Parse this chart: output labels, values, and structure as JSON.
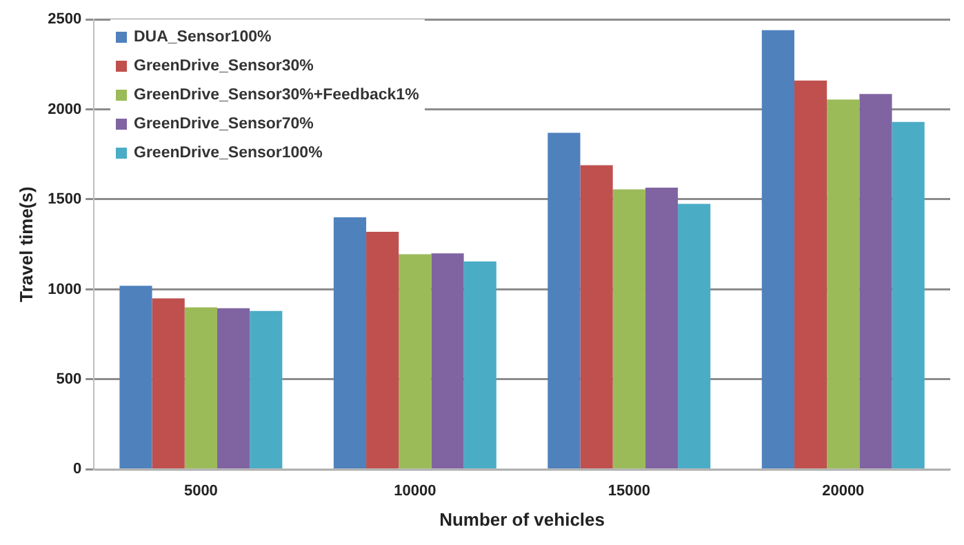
{
  "chart_data": {
    "type": "bar",
    "xlabel": "Number of vehicles",
    "ylabel": "Travel time(s)",
    "categories": [
      "5000",
      "10000",
      "15000",
      "20000"
    ],
    "series": [
      {
        "name": "DUA_Sensor100%",
        "color": "#4f81bd",
        "values": [
          1020,
          1400,
          1870,
          2440
        ]
      },
      {
        "name": "GreenDrive_Sensor30%",
        "color": "#c0504d",
        "values": [
          950,
          1320,
          1690,
          2160
        ]
      },
      {
        "name": "GreenDrive_Sensor30%+Feedback1%",
        "color": "#9bbb59",
        "values": [
          900,
          1195,
          1555,
          2055
        ]
      },
      {
        "name": "GreenDrive_Sensor70%",
        "color": "#8064a2",
        "values": [
          895,
          1200,
          1565,
          2085
        ]
      },
      {
        "name": "GreenDrive_Sensor100%",
        "color": "#4bacc6",
        "values": [
          880,
          1155,
          1475,
          1930
        ]
      }
    ],
    "ylim": [
      0,
      2500
    ],
    "yticks": [
      0,
      500,
      1000,
      1500,
      2000,
      2500
    ],
    "grid": "y",
    "legend": "top left"
  }
}
